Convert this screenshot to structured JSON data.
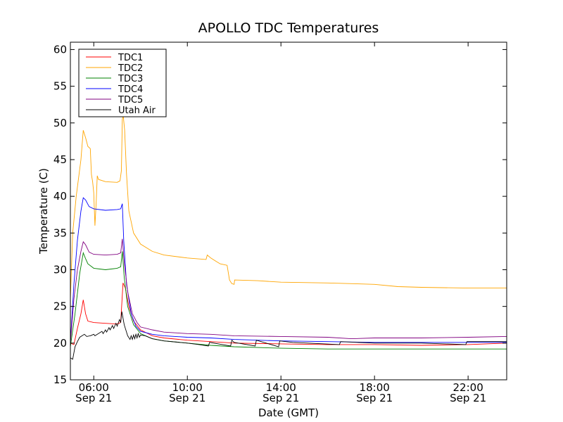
{
  "chart_data": {
    "type": "line",
    "title": "APOLLO TDC Temperatures",
    "xlabel": "Date (GMT)",
    "ylabel": "Temperature (C)",
    "xlim": [
      5.0,
      23.65
    ],
    "ylim": [
      15,
      61
    ],
    "x_units": "hours GMT on Sep 21",
    "grid": false,
    "legend_position": "top-left",
    "x_ticks": [
      {
        "value": 6,
        "time": "06:00",
        "date": "Sep 21"
      },
      {
        "value": 10,
        "time": "10:00",
        "date": "Sep 21"
      },
      {
        "value": 14,
        "time": "14:00",
        "date": "Sep 21"
      },
      {
        "value": 18,
        "time": "18:00",
        "date": "Sep 21"
      },
      {
        "value": 22,
        "time": "22:00",
        "date": "Sep 21"
      }
    ],
    "y_ticks": [
      15,
      20,
      25,
      30,
      35,
      40,
      45,
      50,
      55,
      60
    ],
    "series": [
      {
        "name": "TDC1",
        "color": "#ff0000",
        "points": [
          [
            5.0,
            20.0
          ],
          [
            5.15,
            19.8
          ],
          [
            5.3,
            22.0
          ],
          [
            5.45,
            24.0
          ],
          [
            5.55,
            25.9
          ],
          [
            5.65,
            24.0
          ],
          [
            5.75,
            23.0
          ],
          [
            6.0,
            22.8
          ],
          [
            6.5,
            22.7
          ],
          [
            7.0,
            22.6
          ],
          [
            7.15,
            22.8
          ],
          [
            7.25,
            28.2
          ],
          [
            7.35,
            27.5
          ],
          [
            7.5,
            25.0
          ],
          [
            7.7,
            23.0
          ],
          [
            8.0,
            21.8
          ],
          [
            8.5,
            21.0
          ],
          [
            9.0,
            20.7
          ],
          [
            10.0,
            20.4
          ],
          [
            11.0,
            20.2
          ],
          [
            12.0,
            20.0
          ],
          [
            14.0,
            19.9
          ],
          [
            16.0,
            19.8
          ],
          [
            18.0,
            19.8
          ],
          [
            20.0,
            19.7
          ],
          [
            22.0,
            19.8
          ],
          [
            23.65,
            20.0
          ]
        ]
      },
      {
        "name": "TDC2",
        "color": "#ffa500",
        "points": [
          [
            5.0,
            26.0
          ],
          [
            5.1,
            35.0
          ],
          [
            5.25,
            40.0
          ],
          [
            5.45,
            45.0
          ],
          [
            5.55,
            49.0
          ],
          [
            5.65,
            48.0
          ],
          [
            5.75,
            46.8
          ],
          [
            5.85,
            46.5
          ],
          [
            5.9,
            43.0
          ],
          [
            5.95,
            42.0
          ],
          [
            6.0,
            40.5
          ],
          [
            6.05,
            36.0
          ],
          [
            6.1,
            39.0
          ],
          [
            6.15,
            42.8
          ],
          [
            6.2,
            42.3
          ],
          [
            6.5,
            42.0
          ],
          [
            7.0,
            41.9
          ],
          [
            7.05,
            42.0
          ],
          [
            7.12,
            42.1
          ],
          [
            7.18,
            43.5
          ],
          [
            7.22,
            50.5
          ],
          [
            7.26,
            51.0
          ],
          [
            7.32,
            49.0
          ],
          [
            7.4,
            43.0
          ],
          [
            7.5,
            38.0
          ],
          [
            7.7,
            35.0
          ],
          [
            8.0,
            33.5
          ],
          [
            8.5,
            32.5
          ],
          [
            9.0,
            32.0
          ],
          [
            10.0,
            31.6
          ],
          [
            10.8,
            31.4
          ],
          [
            10.85,
            32.0
          ],
          [
            11.0,
            31.6
          ],
          [
            11.2,
            31.2
          ],
          [
            11.4,
            30.8
          ],
          [
            11.7,
            30.6
          ],
          [
            11.8,
            28.6
          ],
          [
            11.9,
            28.1
          ],
          [
            12.0,
            28.0
          ],
          [
            12.02,
            28.6
          ],
          [
            13.0,
            28.5
          ],
          [
            14.0,
            28.3
          ],
          [
            16.0,
            28.2
          ],
          [
            18.0,
            28.0
          ],
          [
            19.0,
            27.7
          ],
          [
            20.0,
            27.6
          ],
          [
            22.0,
            27.5
          ],
          [
            23.65,
            27.5
          ]
        ]
      },
      {
        "name": "TDC3",
        "color": "#008000",
        "points": [
          [
            5.0,
            19.5
          ],
          [
            5.2,
            24.0
          ],
          [
            5.4,
            29.5
          ],
          [
            5.55,
            32.3
          ],
          [
            5.65,
            31.5
          ],
          [
            5.75,
            30.8
          ],
          [
            6.0,
            30.2
          ],
          [
            6.5,
            30.0
          ],
          [
            7.0,
            30.2
          ],
          [
            7.15,
            30.4
          ],
          [
            7.22,
            32.5
          ],
          [
            7.3,
            29.0
          ],
          [
            7.45,
            25.0
          ],
          [
            7.7,
            22.5
          ],
          [
            8.0,
            21.3
          ],
          [
            8.5,
            20.6
          ],
          [
            9.0,
            20.3
          ],
          [
            10.0,
            20.0
          ],
          [
            11.0,
            19.7
          ],
          [
            12.0,
            19.5
          ],
          [
            14.0,
            19.3
          ],
          [
            16.0,
            19.2
          ],
          [
            18.0,
            19.2
          ],
          [
            20.0,
            19.2
          ],
          [
            22.0,
            19.2
          ],
          [
            23.65,
            19.2
          ]
        ]
      },
      {
        "name": "TDC4",
        "color": "#0000ff",
        "points": [
          [
            5.0,
            20.0
          ],
          [
            5.15,
            28.0
          ],
          [
            5.3,
            34.0
          ],
          [
            5.45,
            38.0
          ],
          [
            5.55,
            39.8
          ],
          [
            5.65,
            39.5
          ],
          [
            5.8,
            38.6
          ],
          [
            6.0,
            38.3
          ],
          [
            6.5,
            38.1
          ],
          [
            7.0,
            38.2
          ],
          [
            7.15,
            38.3
          ],
          [
            7.22,
            39.0
          ],
          [
            7.28,
            34.0
          ],
          [
            7.4,
            28.0
          ],
          [
            7.6,
            24.0
          ],
          [
            7.8,
            22.3
          ],
          [
            8.0,
            21.6
          ],
          [
            8.5,
            21.2
          ],
          [
            9.0,
            21.0
          ],
          [
            10.0,
            20.8
          ],
          [
            11.0,
            20.7
          ],
          [
            12.0,
            20.5
          ],
          [
            14.0,
            20.3
          ],
          [
            16.0,
            20.2
          ],
          [
            18.0,
            20.1
          ],
          [
            20.0,
            20.1
          ],
          [
            22.0,
            20.1
          ],
          [
            23.65,
            20.1
          ]
        ]
      },
      {
        "name": "TDC5",
        "color": "#800080",
        "points": [
          [
            5.0,
            20.0
          ],
          [
            5.15,
            26.0
          ],
          [
            5.3,
            30.0
          ],
          [
            5.45,
            32.5
          ],
          [
            5.55,
            33.8
          ],
          [
            5.65,
            33.4
          ],
          [
            5.8,
            32.4
          ],
          [
            6.0,
            32.1
          ],
          [
            6.5,
            32.0
          ],
          [
            7.0,
            32.1
          ],
          [
            7.15,
            32.3
          ],
          [
            7.22,
            34.2
          ],
          [
            7.3,
            31.0
          ],
          [
            7.45,
            27.0
          ],
          [
            7.65,
            24.0
          ],
          [
            7.85,
            22.8
          ],
          [
            8.0,
            22.2
          ],
          [
            8.5,
            21.8
          ],
          [
            9.0,
            21.5
          ],
          [
            10.0,
            21.3
          ],
          [
            11.0,
            21.2
          ],
          [
            12.0,
            21.0
          ],
          [
            14.0,
            20.9
          ],
          [
            16.0,
            20.8
          ],
          [
            17.0,
            20.6
          ],
          [
            18.0,
            20.7
          ],
          [
            20.0,
            20.7
          ],
          [
            22.0,
            20.8
          ],
          [
            23.65,
            20.9
          ]
        ]
      },
      {
        "name": "Utah Air",
        "color": "#000000",
        "points": [
          [
            5.0,
            18.0
          ],
          [
            5.1,
            17.8
          ],
          [
            5.2,
            19.5
          ],
          [
            5.3,
            20.2
          ],
          [
            5.4,
            20.8
          ],
          [
            5.5,
            21.0
          ],
          [
            5.6,
            21.2
          ],
          [
            5.7,
            20.9
          ],
          [
            5.85,
            21.0
          ],
          [
            6.0,
            21.2
          ],
          [
            6.05,
            21.0
          ],
          [
            6.2,
            21.3
          ],
          [
            6.35,
            21.6
          ],
          [
            6.4,
            21.3
          ],
          [
            6.5,
            21.8
          ],
          [
            6.55,
            21.5
          ],
          [
            6.65,
            22.1
          ],
          [
            6.7,
            21.8
          ],
          [
            6.8,
            22.4
          ],
          [
            6.85,
            22.0
          ],
          [
            6.95,
            22.7
          ],
          [
            7.0,
            22.3
          ],
          [
            7.1,
            23.2
          ],
          [
            7.15,
            22.8
          ],
          [
            7.2,
            24.3
          ],
          [
            7.3,
            22.5
          ],
          [
            7.45,
            21.0
          ],
          [
            7.55,
            20.5
          ],
          [
            7.6,
            21.0
          ],
          [
            7.65,
            20.5
          ],
          [
            7.7,
            21.1
          ],
          [
            7.75,
            20.6
          ],
          [
            7.8,
            21.2
          ],
          [
            7.85,
            20.7
          ],
          [
            7.9,
            21.3
          ],
          [
            7.95,
            20.8
          ],
          [
            8.0,
            21.1
          ],
          [
            8.2,
            21.0
          ],
          [
            8.5,
            20.6
          ],
          [
            9.0,
            20.3
          ],
          [
            10.0,
            20.0
          ],
          [
            10.5,
            19.8
          ],
          [
            10.9,
            19.6
          ],
          [
            10.95,
            20.1
          ],
          [
            11.5,
            19.8
          ],
          [
            11.85,
            19.6
          ],
          [
            11.9,
            20.4
          ],
          [
            12.0,
            20.1
          ],
          [
            12.9,
            19.6
          ],
          [
            12.95,
            20.4
          ],
          [
            13.9,
            19.5
          ],
          [
            13.95,
            20.3
          ],
          [
            14.5,
            20.1
          ],
          [
            16.5,
            19.8
          ],
          [
            16.55,
            20.2
          ],
          [
            18.0,
            20.0
          ],
          [
            20.0,
            20.0
          ],
          [
            21.9,
            19.8
          ],
          [
            21.95,
            20.2
          ],
          [
            23.65,
            20.2
          ]
        ]
      }
    ]
  }
}
